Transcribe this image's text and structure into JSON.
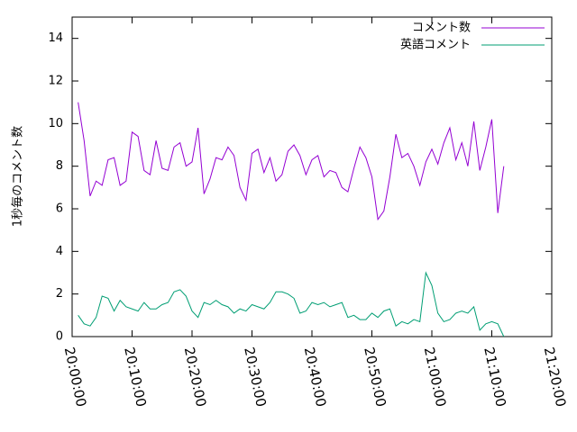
{
  "chart_data": {
    "type": "line",
    "ylabel": "1秒毎のコメント数",
    "x": [
      "20:01:00",
      "20:02:00",
      "20:03:00",
      "20:04:00",
      "20:05:00",
      "20:06:00",
      "20:07:00",
      "20:08:00",
      "20:09:00",
      "20:10:00",
      "20:11:00",
      "20:12:00",
      "20:13:00",
      "20:14:00",
      "20:15:00",
      "20:16:00",
      "20:17:00",
      "20:18:00",
      "20:19:00",
      "20:20:00",
      "20:21:00",
      "20:22:00",
      "20:23:00",
      "20:24:00",
      "20:25:00",
      "20:26:00",
      "20:27:00",
      "20:28:00",
      "20:29:00",
      "20:30:00",
      "20:31:00",
      "20:32:00",
      "20:33:00",
      "20:34:00",
      "20:35:00",
      "20:36:00",
      "20:37:00",
      "20:38:00",
      "20:39:00",
      "20:40:00",
      "20:41:00",
      "20:42:00",
      "20:43:00",
      "20:44:00",
      "20:45:00",
      "20:46:00",
      "20:47:00",
      "20:48:00",
      "20:49:00",
      "20:50:00",
      "20:51:00",
      "20:52:00",
      "20:53:00",
      "20:54:00",
      "20:55:00",
      "20:56:00",
      "20:57:00",
      "20:58:00",
      "20:59:00",
      "21:00:00",
      "21:01:00",
      "21:02:00",
      "21:03:00",
      "21:04:00",
      "21:05:00",
      "21:06:00",
      "21:07:00",
      "21:08:00",
      "21:09:00",
      "21:10:00",
      "21:11:00",
      "21:12:00"
    ],
    "series": [
      {
        "name": "コメント数",
        "color": "#9400d3",
        "values": [
          11.0,
          9.2,
          6.6,
          7.3,
          7.1,
          8.3,
          8.4,
          7.1,
          7.3,
          9.6,
          9.4,
          7.8,
          7.6,
          9.2,
          7.9,
          7.8,
          8.9,
          9.1,
          8.0,
          8.2,
          9.8,
          6.7,
          7.4,
          8.4,
          8.3,
          8.9,
          8.5,
          7.0,
          6.4,
          8.6,
          8.8,
          7.7,
          8.4,
          7.3,
          7.6,
          8.7,
          9.0,
          8.5,
          7.6,
          8.3,
          8.5,
          7.5,
          7.8,
          7.7,
          7.0,
          6.8,
          7.9,
          8.9,
          8.4,
          7.5,
          5.5,
          5.9,
          7.5,
          9.5,
          8.4,
          8.6,
          8.0,
          7.1,
          8.2,
          8.8,
          8.1,
          9.1,
          9.8,
          8.3,
          9.1,
          8.0,
          10.1,
          7.8,
          8.9,
          10.2,
          5.8,
          8.0
        ]
      },
      {
        "name": "英語コメント",
        "color": "#009e73",
        "values": [
          1.0,
          0.6,
          0.5,
          0.9,
          1.9,
          1.8,
          1.2,
          1.7,
          1.4,
          1.3,
          1.2,
          1.6,
          1.3,
          1.3,
          1.5,
          1.6,
          2.1,
          2.2,
          1.9,
          1.2,
          0.9,
          1.6,
          1.5,
          1.7,
          1.5,
          1.4,
          1.1,
          1.3,
          1.2,
          1.5,
          1.4,
          1.3,
          1.6,
          2.1,
          2.1,
          2.0,
          1.8,
          1.1,
          1.2,
          1.6,
          1.5,
          1.6,
          1.4,
          1.5,
          1.6,
          0.9,
          1.0,
          0.8,
          0.8,
          1.1,
          0.9,
          1.2,
          1.3,
          0.5,
          0.7,
          0.6,
          0.8,
          0.7,
          3.0,
          2.4,
          1.1,
          0.7,
          0.8,
          1.1,
          1.2,
          1.1,
          1.4,
          0.3,
          0.6,
          0.7,
          0.6,
          0.0
        ]
      }
    ],
    "xlim": [
      "20:00:00",
      "21:20:00"
    ],
    "xticks": [
      "20:00:00",
      "20:10:00",
      "20:20:00",
      "20:30:00",
      "20:40:00",
      "20:50:00",
      "21:00:00",
      "21:10:00",
      "21:20:00"
    ],
    "ylim": [
      0,
      15
    ],
    "yticks": [
      0,
      2,
      4,
      6,
      8,
      10,
      12,
      14
    ],
    "grid": false,
    "legend": "top-right"
  }
}
